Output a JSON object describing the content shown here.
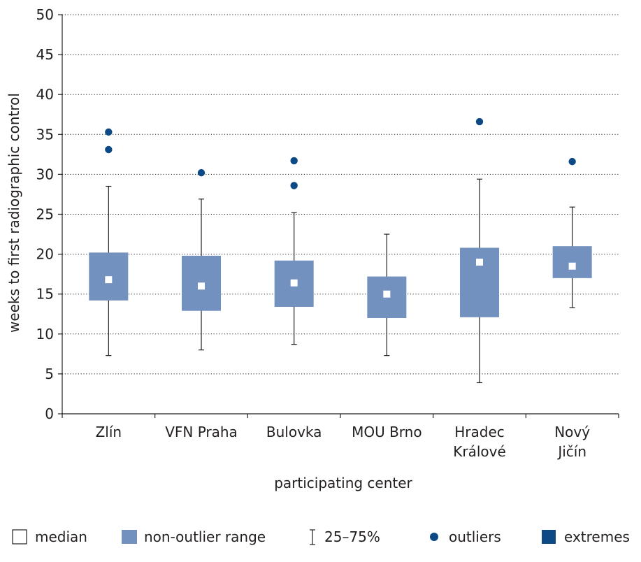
{
  "chart_data": {
    "type": "box",
    "xlabel": "participating center",
    "ylabel": "weeks to first radiographic control",
    "ylim": [
      0,
      50
    ],
    "yticks": [
      0,
      5,
      10,
      15,
      20,
      25,
      30,
      35,
      40,
      45,
      50
    ],
    "grid": "horizontal dotted",
    "categories": [
      [
        "Zlín"
      ],
      [
        "VFN Praha"
      ],
      [
        "Bulovka"
      ],
      [
        "MOU Brno"
      ],
      [
        "Hradec",
        "Králové"
      ],
      [
        "Nový",
        "Jičín"
      ]
    ],
    "boxes": [
      {
        "whisker_low": 7.3,
        "q1": 14.2,
        "median": 16.8,
        "q3": 20.2,
        "whisker_high": 28.5,
        "outliers": [
          33.1,
          35.3
        ]
      },
      {
        "whisker_low": 8.0,
        "q1": 12.9,
        "median": 16.0,
        "q3": 19.8,
        "whisker_high": 26.9,
        "outliers": [
          30.2
        ]
      },
      {
        "whisker_low": 8.7,
        "q1": 13.4,
        "median": 16.4,
        "q3": 19.2,
        "whisker_high": 25.2,
        "outliers": [
          28.6,
          31.7
        ]
      },
      {
        "whisker_low": 7.3,
        "q1": 12.0,
        "median": 15.0,
        "q3": 17.2,
        "whisker_high": 22.5,
        "outliers": []
      },
      {
        "whisker_low": 3.9,
        "q1": 12.1,
        "median": 19.0,
        "q3": 20.8,
        "whisker_high": 29.4,
        "outliers": [
          36.6
        ]
      },
      {
        "whisker_low": 13.3,
        "q1": 17.0,
        "median": 18.5,
        "q3": 21.0,
        "whisker_high": 25.9,
        "outliers": [
          31.6
        ]
      }
    ],
    "colors": {
      "box": "#7391bf",
      "outlier": "#0d4a85",
      "median": "#ffffff",
      "extremes": "#0d4a85",
      "whisker": "#231f20"
    },
    "legend": {
      "placement": "bottom",
      "items": [
        {
          "label": "median",
          "symbol": "hollow-square"
        },
        {
          "label": "non-outlier range",
          "symbol": "filled-rect"
        },
        {
          "label": "25–75%",
          "symbol": "i-beam"
        },
        {
          "label": "outliers",
          "symbol": "dot"
        },
        {
          "label": "extremes",
          "symbol": "filled-square"
        }
      ]
    }
  }
}
